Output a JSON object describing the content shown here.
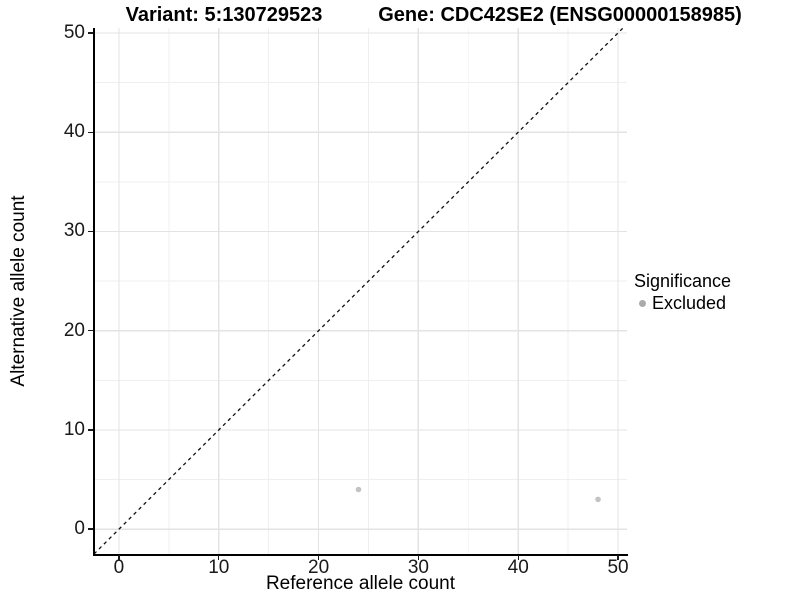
{
  "titles": {
    "variant": "Variant: 5:130729523",
    "gene": "Gene: CDC42SE2 (ENSG00000158985)"
  },
  "chart_data": {
    "type": "scatter",
    "xlabel": "Reference allele count",
    "ylabel": "Alternative allele count",
    "xlim": [
      -2.5,
      50.9
    ],
    "ylim": [
      -2.5,
      50.5
    ],
    "xticks": [
      0,
      10,
      20,
      30,
      40,
      50
    ],
    "yticks": [
      0,
      10,
      20,
      30,
      40,
      50
    ],
    "xminor": [
      5,
      15,
      25,
      35,
      45
    ],
    "yminor": [
      5,
      15,
      25,
      35,
      45
    ],
    "grid": "major and minor gridlines on white background",
    "identity_line": {
      "equation": "y = x",
      "style": "dashed",
      "color": "#111111"
    },
    "series": [
      {
        "name": "Excluded",
        "marker": "circle",
        "color": "#c3c3c3",
        "points": [
          [
            24,
            4
          ],
          [
            48,
            3
          ]
        ]
      }
    ],
    "legend": {
      "title": "Significance",
      "position": "right",
      "entries": [
        {
          "label": "Excluded",
          "marker_color": "#aaaaaa"
        }
      ]
    }
  },
  "colors": {
    "background": "#ffffff",
    "axis_line": "#000000",
    "tick_text": "#1a1a1a",
    "grid_major": "#e3e3e3",
    "grid_minor": "#efefef"
  }
}
